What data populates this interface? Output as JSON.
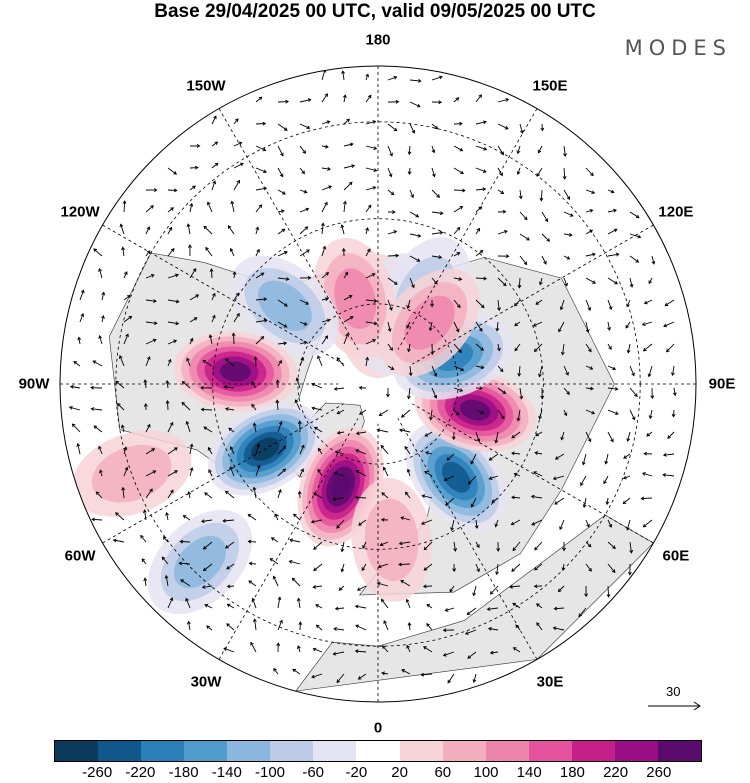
{
  "header": {
    "title": "Base 29/04/2025 00 UTC, valid 09/05/2025 00 UTC",
    "brand": "MODES"
  },
  "map": {
    "projection": "north-polar-stereographic",
    "longitude_labels": [
      "180",
      "150E",
      "120E",
      "90E",
      "60E",
      "30E",
      "0",
      "30W",
      "60W",
      "90W",
      "120W",
      "150W"
    ],
    "reference_vector_label": "30",
    "colors": {
      "land": "#e6e6e6",
      "ocean": "#ffffff",
      "grid": "#000000"
    },
    "anomalies": [
      {
        "lon": 180,
        "lat": 73,
        "sign": 1,
        "level": 2
      },
      {
        "lon": 166,
        "lat": 72,
        "sign": -1,
        "level": 1
      },
      {
        "lon": 152,
        "lat": 65,
        "sign": -1,
        "level": 2
      },
      {
        "lon": 195,
        "lat": 68,
        "sign": 1,
        "level": 3
      },
      {
        "lon": 230,
        "lat": 60,
        "sign": -1,
        "level": 3
      },
      {
        "lon": 265,
        "lat": 55,
        "sign": 1,
        "level": 7
      },
      {
        "lon": 300,
        "lat": 58,
        "sign": -1,
        "level": 7
      },
      {
        "lon": 340,
        "lat": 63,
        "sign": 1,
        "level": 8
      },
      {
        "lon": 5,
        "lat": 52,
        "sign": 1,
        "level": 2
      },
      {
        "lon": 40,
        "lat": 60,
        "sign": -1,
        "level": 6
      },
      {
        "lon": 75,
        "lat": 65,
        "sign": 1,
        "level": 7
      },
      {
        "lon": 110,
        "lat": 70,
        "sign": -1,
        "level": 5
      },
      {
        "lon": 140,
        "lat": 70,
        "sign": 1,
        "level": 3
      },
      {
        "lon": 315,
        "lat": 32,
        "sign": -1,
        "level": 3
      },
      {
        "lon": 290,
        "lat": 30,
        "sign": 1,
        "level": 2
      }
    ]
  },
  "colorbar": {
    "ticks": [
      "-260",
      "-220",
      "-180",
      "-140",
      "-100",
      "-60",
      "-20",
      "20",
      "60",
      "100",
      "140",
      "180",
      "220",
      "260"
    ],
    "colors": [
      "#0b3a5c",
      "#10578c",
      "#2b7fb8",
      "#4f9bcb",
      "#8bb6dd",
      "#bccbe6",
      "#e4e3f1",
      "#ffffff",
      "#f7d4d8",
      "#f3aec0",
      "#ee85ad",
      "#e5529d",
      "#c51f8a",
      "#9a0e85",
      "#5b0a6e"
    ]
  }
}
